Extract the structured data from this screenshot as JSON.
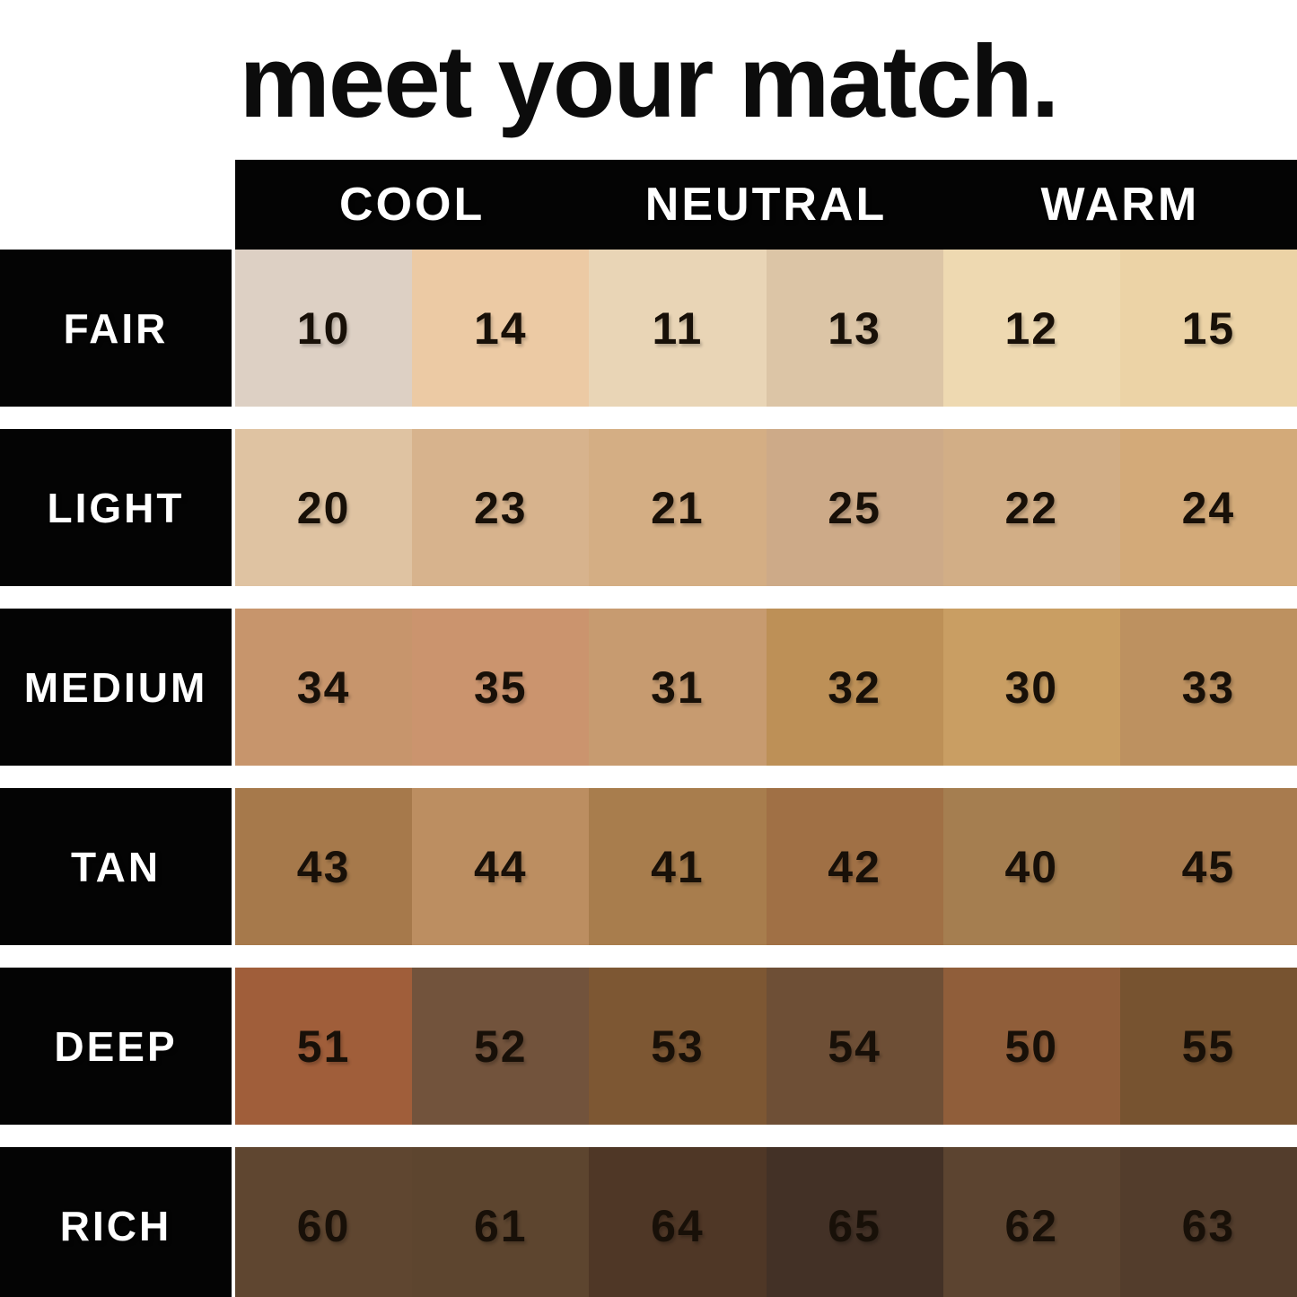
{
  "title": "meet your match.",
  "header": {
    "labels": [
      "COOL",
      "NEUTRAL",
      "WARM"
    ]
  },
  "palette": {
    "background": "#ffffff",
    "bar_black": "#040404",
    "header_text": "#ffffff",
    "number_text": "#181008"
  },
  "rows": [
    {
      "label": "FAIR",
      "shades": [
        {
          "num": "10",
          "hex": "#ddd0c4"
        },
        {
          "num": "14",
          "hex": "#eccaa4"
        },
        {
          "num": "11",
          "hex": "#e9d5b6"
        },
        {
          "num": "13",
          "hex": "#dcc5a6"
        },
        {
          "num": "12",
          "hex": "#eed9b1"
        },
        {
          "num": "15",
          "hex": "#ecd3a6"
        }
      ]
    },
    {
      "label": "LIGHT",
      "shades": [
        {
          "num": "20",
          "hex": "#dfc3a2"
        },
        {
          "num": "23",
          "hex": "#d7b38d"
        },
        {
          "num": "21",
          "hex": "#d4ae84"
        },
        {
          "num": "25",
          "hex": "#cdaa88"
        },
        {
          "num": "22",
          "hex": "#d2ae86"
        },
        {
          "num": "24",
          "hex": "#d3aa79"
        }
      ]
    },
    {
      "label": "MEDIUM",
      "shades": [
        {
          "num": "34",
          "hex": "#c7956c"
        },
        {
          "num": "35",
          "hex": "#cb946e"
        },
        {
          "num": "31",
          "hex": "#c79b70"
        },
        {
          "num": "32",
          "hex": "#bd9057"
        },
        {
          "num": "30",
          "hex": "#c99e63"
        },
        {
          "num": "33",
          "hex": "#bd9160"
        }
      ]
    },
    {
      "label": "TAN",
      "shades": [
        {
          "num": "43",
          "hex": "#a6794b"
        },
        {
          "num": "44",
          "hex": "#bc8e61"
        },
        {
          "num": "41",
          "hex": "#a87d4d"
        },
        {
          "num": "42",
          "hex": "#a07045"
        },
        {
          "num": "40",
          "hex": "#a57e50"
        },
        {
          "num": "45",
          "hex": "#a87b4e"
        }
      ]
    },
    {
      "label": "DEEP",
      "shades": [
        {
          "num": "51",
          "hex": "#a05e3a"
        },
        {
          "num": "52",
          "hex": "#72533c"
        },
        {
          "num": "53",
          "hex": "#7d5733"
        },
        {
          "num": "54",
          "hex": "#6e4f36"
        },
        {
          "num": "50",
          "hex": "#905e3a"
        },
        {
          "num": "55",
          "hex": "#775330"
        }
      ]
    },
    {
      "label": "RICH",
      "shades": [
        {
          "num": "60",
          "hex": "#5f4630"
        },
        {
          "num": "61",
          "hex": "#5d452f"
        },
        {
          "num": "64",
          "hex": "#4f3726"
        },
        {
          "num": "65",
          "hex": "#433126"
        },
        {
          "num": "62",
          "hex": "#5c4430"
        },
        {
          "num": "63",
          "hex": "#533d2c"
        }
      ]
    }
  ],
  "chart_data": {
    "type": "table",
    "title": "meet your match.",
    "column_groups": [
      "COOL",
      "NEUTRAL",
      "WARM"
    ],
    "columns_per_group": 2,
    "row_labels": [
      "FAIR",
      "LIGHT",
      "MEDIUM",
      "TAN",
      "DEEP",
      "RICH"
    ],
    "cells": [
      [
        10,
        14,
        11,
        13,
        12,
        15
      ],
      [
        20,
        23,
        21,
        25,
        22,
        24
      ],
      [
        34,
        35,
        31,
        32,
        30,
        33
      ],
      [
        43,
        44,
        41,
        42,
        40,
        45
      ],
      [
        51,
        52,
        53,
        54,
        50,
        55
      ],
      [
        60,
        61,
        64,
        65,
        62,
        63
      ]
    ],
    "layout_hints": {
      "row_label_column": "black boxes, white text, left side",
      "header_row": "black bar, white text, spans swatch columns only",
      "grid": "6 undertone columns x 6 depth rows of skin-tone swatches"
    }
  }
}
